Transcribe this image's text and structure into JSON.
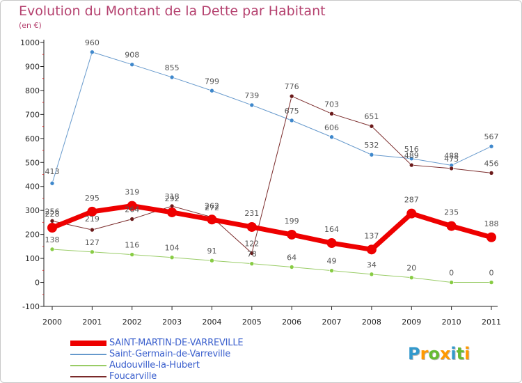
{
  "title": "Evolution du Montant de la Dette par Habitant",
  "unit": "(en €)",
  "chart_data": {
    "type": "line",
    "x": [
      "2000",
      "2001",
      "2002",
      "2003",
      "2004",
      "2005",
      "2006",
      "2007",
      "2008",
      "2009",
      "2010",
      "2011"
    ],
    "ylim": [
      -100,
      1000
    ],
    "yticks": [
      -100,
      0,
      100,
      200,
      300,
      400,
      500,
      600,
      700,
      800,
      900,
      1000
    ],
    "grid": false,
    "legend_position": "bottom-left",
    "series": [
      {
        "name": "SAINT-MARTIN-DE-VARREVILLE",
        "color": "#ee0000",
        "values": [
          228,
          295,
          319,
          292,
          262,
          231,
          199,
          164,
          137,
          287,
          235,
          188
        ]
      },
      {
        "name": "Saint-Germain-de-Varreville",
        "color": "#6699cc",
        "values": [
          413,
          960,
          908,
          855,
          799,
          739,
          675,
          606,
          532,
          516,
          488,
          567
        ]
      },
      {
        "name": "Audouville-la-Hubert",
        "color": "#99cc66",
        "values": [
          138,
          127,
          116,
          104,
          91,
          78,
          64,
          49,
          34,
          20,
          0,
          0
        ]
      },
      {
        "name": "Foucarville",
        "color": "#7a2a2a",
        "values": [
          256,
          219,
          264,
          318,
          272,
          122,
          776,
          703,
          651,
          489,
          475,
          456
        ]
      }
    ]
  },
  "logo": {
    "letters": [
      "P",
      "r",
      "o",
      "x",
      "i",
      "t",
      "i"
    ],
    "colors": [
      "#3399cc",
      "#ff9900",
      "#66bb33",
      "#ff9900",
      "#3399cc",
      "#66bb33",
      "#ff9900"
    ]
  }
}
